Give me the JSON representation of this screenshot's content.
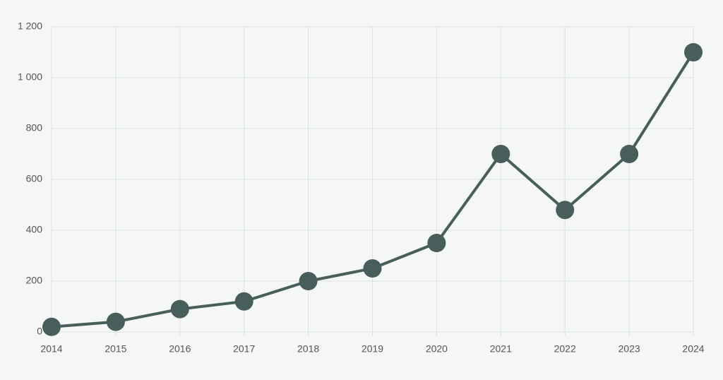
{
  "chart_data": {
    "type": "line",
    "x": [
      2014,
      2015,
      2016,
      2017,
      2018,
      2019,
      2020,
      2021,
      2022,
      2023,
      2024
    ],
    "values": [
      20,
      40,
      90,
      120,
      200,
      250,
      350,
      700,
      480,
      700,
      1100
    ],
    "color": "#475e5b",
    "xlim": [
      2014,
      2024
    ],
    "xticks": [
      2014,
      2015,
      2016,
      2017,
      2018,
      2019,
      2020,
      2021,
      2022,
      2023,
      2024
    ],
    "ylim": [
      0,
      1200
    ],
    "yticks": [
      0,
      200,
      400,
      600,
      800,
      {
        "value": 1000,
        "label": "1 000"
      },
      {
        "value": 1200,
        "label": "1 200"
      }
    ],
    "grid": true
  }
}
